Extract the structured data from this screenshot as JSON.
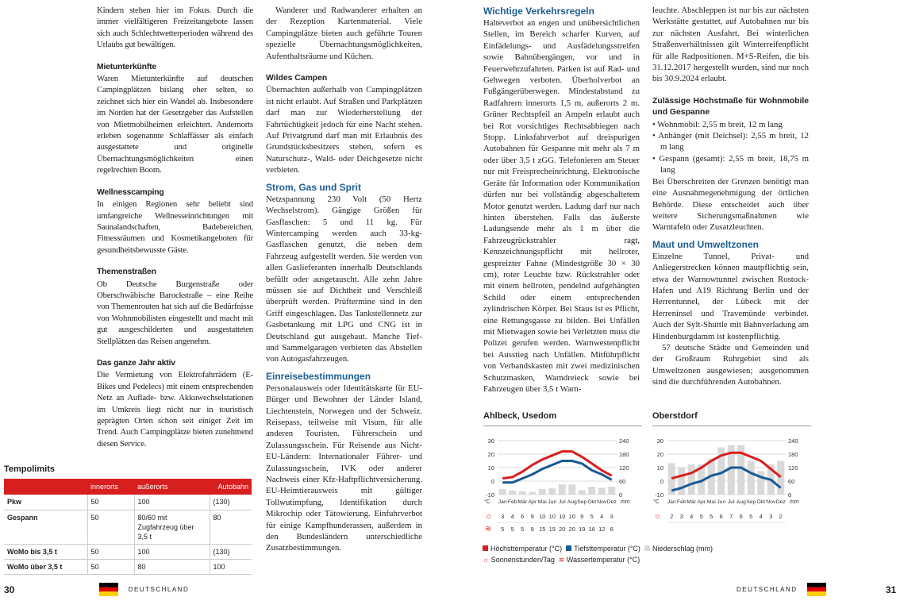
{
  "left_page": {
    "col1": [
      {
        "type": "p",
        "text": "Kindern stehen hier im Fokus. Durch die immer vielfältigeren Freizeitangebote lassen sich auch Schlechtwetterperioden während des Urlaubs gut bewältigen."
      },
      {
        "type": "h4",
        "text": "Mietunterkünfte"
      },
      {
        "type": "p",
        "text": "Waren Mietunterkünfte auf deutschen Campingplätzen bislang eher selten, so zeichnet sich hier ein Wandel ab. Insbesondere im Norden hat der Gesetzgeber das Aufstellen von Mietmobilheimen erleichtert. Andernorts erleben sogenannte Schlaffässer als einfach ausgestattete und originelle Übernachtungsmöglichkeiten einen regelrechten Boom."
      },
      {
        "type": "h4",
        "text": "Wellnesscamping"
      },
      {
        "type": "p",
        "text": "In einigen Regionen sehr beliebt sind umfangreiche Wellnesseinrichtungen mit Saunalandschaften, Badebereichen, Fitnessräumen und Kosmetikangeboten für gesundheitsbewusste Gäste."
      },
      {
        "type": "h4",
        "text": "Themenstraßen"
      },
      {
        "type": "p",
        "text": "Ob Deutsche Burgenstraße oder Oberschwäbische Barockstraße – eine Reihe von Themenrouten hat sich auf die Bedürfnisse von Wohnmobilisten eingestellt und macht mit gut ausgeschilderten und ausgestatteten Stellplätzen das Reisen angenehm."
      },
      {
        "type": "h4",
        "text": "Das ganze Jahr aktiv"
      },
      {
        "type": "p",
        "text": "Die Vermietung von Elektrofahrrädern (E-Bikes und Pedelecs) mit einem entsprechenden Netz an Auflade- bzw. Akkuwechselstationen im Umkreis liegt nicht nur in touristisch geprägten Orten schon seit einiger Zeit im Trend. Auch Campingplätze bieten zunehmend diesen Service."
      }
    ],
    "col2": [
      {
        "type": "p",
        "ind": true,
        "text": "Wanderer und Radwanderer erhalten an der Rezeption Kartenmaterial. Viele Campingplätze bieten auch geführte Touren spezielle Übernachtungsmöglichkeiten, Aufenthaltsräume und Küchen."
      },
      {
        "type": "h4",
        "text": "Wildes Campen"
      },
      {
        "type": "p",
        "text": "Übernachten außerhalb von Campingplätzen ist nicht erlaubt. Auf Straßen und Parkplätzen darf man zur Wiederherstellung der Fahrtüchtigkeit jedoch für eine Nacht stehen. Auf Privatgrund darf man mit Erlaubnis des Grundstücksbesitzers stehen, sofern es Naturschutz-, Wald- oder Deichgesetze nicht verbieten."
      },
      {
        "type": "h3",
        "text": "Strom, Gas und Sprit"
      },
      {
        "type": "p",
        "text": "Netzspannung 230 Volt (50 Hertz Wechselstrom). Gängige Größen für Gasflaschen: 5 und 11 kg. Für Wintercamping werden auch 33-kg-Gasflaschen genutzt, die neben dem Fahrzeug aufgestellt werden. Sie werden von allen Gaslieferanten innerhalb Deutschlands befüllt oder ausgetauscht. Alle zehn Jahre müssen sie auf Dichtheit und Verschleiß überprüft werden. Prüftermine sind in den Griff eingeschlagen. Das Tankstellennetz zur Gasbetankung mit LPG und CNG ist in Deutschland gut ausgebaut. Manche Tief- und Sammelgaragen verbieten das Abstellen von Autogasfahrzeugen."
      },
      {
        "type": "h3",
        "text": "Einreisebestimmungen"
      },
      {
        "type": "p",
        "text": "Personalausweis oder Identitätskarte für EU-Bürger und Bewohner der Länder Island, Liechtenstein, Norwegen und der Schweiz. Reisepass, teilweise mit Visum, für alle anderen Touristen. Führerschein und Zulassungsschein. Für Reisende aus Nicht-EU-Ländern: Internationaler Führer- und Zulassungsschein, IVK oder anderer Nachweis einer Kfz-Haftpflichtversicherung. EU-Heimtierausweis mit gültiger Tollwutimpfung, Identifikation durch Mikrochip oder Tätowierung. Einfuhrverbot für einige Kampfhunderassen, außerdem in den Bundesländern unterschiedliche Zusatzbestimmungen."
      }
    ],
    "table": {
      "title": "Tempolimits",
      "headers": [
        "",
        "innerorts",
        "außerorts",
        "Autobahn"
      ],
      "rows": [
        [
          "Pkw",
          "50",
          "100",
          "(130)"
        ],
        [
          "Gespann",
          "50",
          "80/60 mit Zugfahrzeug über 3,5 t",
          "80"
        ],
        [
          "WoMo bis 3,5 t",
          "50",
          "100",
          "(130)"
        ],
        [
          "WoMo über 3,5 t",
          "50",
          "80",
          "100"
        ]
      ]
    },
    "page_number": "30",
    "country": "DEUTSCHLAND"
  },
  "right_page": {
    "col1": [
      {
        "type": "h3",
        "text": "Wichtige Verkehrsregeln"
      },
      {
        "type": "p",
        "text": "Halteverbot an engen und unübersichtlichen Stellen, im Bereich scharfer Kurven, auf Einfädelungs- und Ausfädelungsstreifen sowie Bahnübergängen, vor und in Feuerwehrzufahrten. Parken ist auf Rad- und Gehwegen verboten. Überholverbot an Fußgängerüberwegen. Mindestabstand zu Radfahrern innerorts 1,5 m, außerorts 2 m. Grüner Rechtspfeil an Ampeln erlaubt auch bei Rot vorsichtiges Rechtsabbiegen nach Stopp. Linksfahrverbot auf dreispurigen Autobahnen für Gespanne mit mehr als 7 m oder über 3,5 t zGG. Telefonieren am Steuer nur mit Freisprecheinrichtung. Elektronische Geräte für Information oder Kommunikation dürfen nur bei vollständig abgeschaltetem Motor genutzt werden. Ladung darf nur nach hinten überstehen. Falls das äußerste Ladungsende mehr als 1 m über die Fahrzeugrückstrahler ragt, Kennzeichnungspflicht mit hellroter, gespreizter Fahne (Mindestgröße 30 × 30 cm), roter Leuchte bzw. Rückstrahler oder mit einem hellroten, pendelnd aufgehängten Schild oder einem entsprechenden zylindrischen Körper. Bei Staus ist es Pflicht, eine Rettungsgasse zu bilden. Bei Unfällen mit Mietwagen sowie bei Verletzten muss die Polizei gerufen werden. Warnwestenpflicht bei Ausstieg nach Unfällen. Mitführpflicht von Verbandskasten mit zwei medizinischen Schutzmasken, Warndreieck sowie bei Fahrzeugen über 3,5 t Warn-"
      }
    ],
    "col2": [
      {
        "type": "p",
        "text": "leuchte. Abschleppen ist nur bis zur nächsten Werkstätte gestattet, auf Autobahnen nur bis zur nächsten Ausfahrt. Bei winterlichen Straßenverhältnissen gilt Winterreifenpflicht für alle Radpositionen. M+S-Reifen, die bis 31.12.2017 hergestellt wurden, sind nur noch bis 30.9.2024 erlaubt."
      },
      {
        "type": "h4",
        "text": "Zulässige Höchstmaße für Wohnmobile und Gespanne"
      },
      {
        "type": "ul",
        "items": [
          "• Wohnmobil: 2,55 m breit, 12 m lang",
          "• Anhänger (mit Deichsel): 2,55 m breit, 12 m lang",
          "• Gespann (gesamt): 2,55 m breit, 18,75 m lang"
        ]
      },
      {
        "type": "p",
        "nogap": true,
        "text": "Bei Überschreiten der Grenzen benötigt man eine Ausnahmegenehmigung der örtlichen Behörde. Diese entscheidet auch über weitere Sicherungsmaßnahmen wie Warntafeln oder Zusatzleuchten."
      },
      {
        "type": "h3",
        "text": "Maut und Umweltzonen"
      },
      {
        "type": "p",
        "text": "Einzelne Tunnel, Privat- und Anliegerstrecken können mautpflichtig sein, etwa der Warnowtunnel zwischen Rostock-Hafen und A19 Richtung Berlin und der Herrentunnel, der Lübeck mit der Herreninsel und Travemünde verbindet. Auch der Sylt-Shuttle mit Bahnverladung am Hindenburgdamm ist kostenpflichtig."
      },
      {
        "type": "p",
        "ind": true,
        "nogap": true,
        "text": "57 deutsche Städte und Gemeinden und der Großraum Ruhrgebiet sind als Umweltzonen ausgewiesen; ausgenommen sind die durchführenden Autobahnen."
      }
    ],
    "page_number": "31",
    "country": "DEUTSCHLAND"
  },
  "chart_data": [
    {
      "type": "line",
      "title": "Ahlbeck, Usedom",
      "categories": [
        "Jan",
        "Feb",
        "Mär",
        "Apr",
        "Mai",
        "Jun",
        "Jul",
        "Aug",
        "Sep",
        "Okt",
        "Nov",
        "Dez"
      ],
      "ylabel_left": "°C",
      "ylabel_right": "mm",
      "ylim_left": [
        -10,
        30
      ],
      "ylim_right": [
        0,
        240
      ],
      "yticks_left": [
        30,
        20,
        10,
        0,
        -10
      ],
      "yticks_right": [
        240,
        180,
        120,
        60,
        0
      ],
      "series": [
        {
          "name": "Höchsttemperatur (°C)",
          "values": [
            2,
            3,
            7,
            12,
            16,
            19,
            22,
            22,
            18,
            13,
            8,
            4
          ]
        },
        {
          "name": "Tiefsttemperatur (°C)",
          "values": [
            -1,
            -1,
            2,
            5,
            9,
            12,
            15,
            15,
            13,
            8,
            5,
            1
          ]
        },
        {
          "name": "Niederschlag (mm)",
          "values": [
            25,
            18,
            15,
            12,
            25,
            28,
            45,
            45,
            20,
            35,
            30,
            35
          ]
        }
      ],
      "sun_hours": [
        "3",
        "4",
        "6",
        "9",
        "10",
        "10",
        "10",
        "10",
        "9",
        "5",
        "4",
        "3"
      ],
      "water_temp": [
        "5",
        "5",
        "5",
        "9",
        "15",
        "19",
        "20",
        "20",
        "19",
        "16",
        "12",
        "8"
      ]
    },
    {
      "type": "line",
      "title": "Oberstdorf",
      "categories": [
        "Jan",
        "Feb",
        "Mär",
        "Apr",
        "Mai",
        "Jun",
        "Jul",
        "Aug",
        "Sep",
        "Okt",
        "Nov",
        "Dez"
      ],
      "ylabel_left": "°C",
      "ylabel_right": "mm",
      "ylim_left": [
        -10,
        30
      ],
      "ylim_right": [
        0,
        240
      ],
      "yticks_left": [
        30,
        20,
        10,
        0,
        -10
      ],
      "yticks_right": [
        240,
        180,
        120,
        60,
        0
      ],
      "series": [
        {
          "name": "Höchsttemperatur (°C)",
          "values": [
            2,
            4,
            6,
            10,
            15,
            19,
            21,
            21,
            18,
            15,
            9,
            3
          ]
        },
        {
          "name": "Tiefsttemperatur (°C)",
          "values": [
            -7,
            -5,
            -2,
            0,
            4,
            6,
            10,
            10,
            6,
            3,
            1,
            -5
          ]
        },
        {
          "name": "Niederschlag (mm)",
          "values": [
            140,
            120,
            135,
            135,
            160,
            210,
            220,
            220,
            150,
            105,
            135,
            150
          ]
        }
      ],
      "sun_hours": [
        "2",
        "3",
        "4",
        "5",
        "5",
        "6",
        "7",
        "6",
        "5",
        "4",
        "3",
        "2"
      ]
    }
  ],
  "legend": {
    "high": "Höchsttemperatur (°C)",
    "low": "Tiefsttemperatur (°C)",
    "precip": "Niederschlag (mm)",
    "sun": "Sonnenstunden/Tag",
    "water": "Wassertemperatur (°C)"
  },
  "colors": {
    "high": "#d71f1f",
    "low": "#1a5a94",
    "precip": "#d9d9d9",
    "heading": "#1c5e93"
  }
}
